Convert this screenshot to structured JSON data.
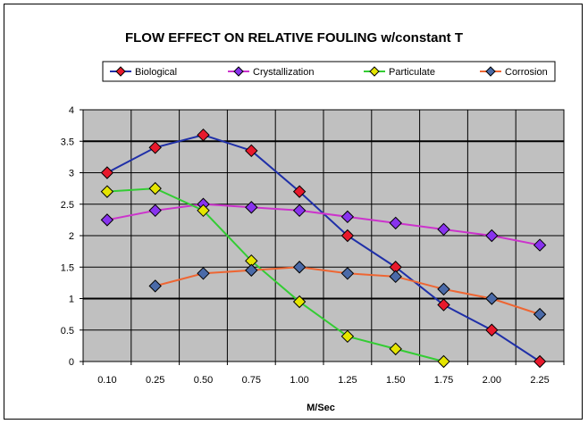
{
  "chart_data": {
    "type": "line",
    "title": "FLOW EFFECT ON RELATIVE FOULING w/constant T",
    "xlabel": "M/Sec",
    "ylabel": "",
    "categories": [
      "0.10",
      "0.25",
      "0.50",
      "0.75",
      "1.00",
      "1.25",
      "1.50",
      "1.75",
      "2.00",
      "2.25"
    ],
    "ylim": [
      0,
      4
    ],
    "yticks": [
      "0",
      "0.5",
      "1",
      "1.5",
      "2",
      "2.5",
      "3",
      "3.5",
      "4"
    ],
    "grid": true,
    "legend_position": "top",
    "plot_background": "#c0c0c0",
    "series": [
      {
        "name": "Biological",
        "line_color": "#1f2fa8",
        "marker_color": "#e8192c",
        "values": [
          3.0,
          3.4,
          3.6,
          3.35,
          2.7,
          2.0,
          1.5,
          0.9,
          0.5,
          0.0
        ]
      },
      {
        "name": "Crystallization",
        "line_color": "#cc33cc",
        "marker_color": "#8833ee",
        "values": [
          2.25,
          2.4,
          2.5,
          2.45,
          2.4,
          2.3,
          2.2,
          2.1,
          2.0,
          1.85
        ]
      },
      {
        "name": "Particulate",
        "line_color": "#33cc33",
        "marker_color": "#e5e500",
        "values": [
          2.7,
          2.75,
          2.4,
          1.6,
          0.95,
          0.4,
          0.2,
          0.0,
          null,
          null
        ]
      },
      {
        "name": "Corrosion",
        "line_color": "#ee6633",
        "marker_color": "#4a6aa8",
        "values": [
          null,
          1.2,
          1.4,
          1.45,
          1.5,
          1.4,
          1.35,
          1.15,
          1.0,
          0.75
        ]
      }
    ]
  }
}
